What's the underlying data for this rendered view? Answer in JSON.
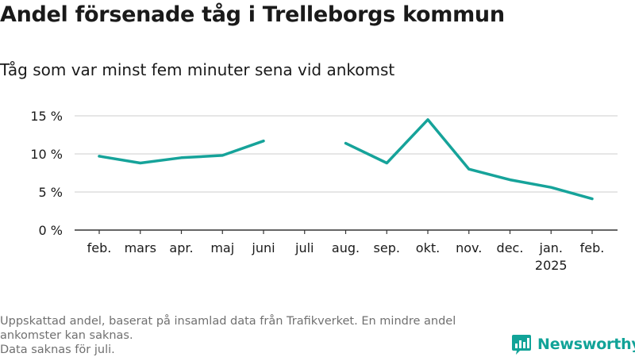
{
  "title": "Andel försenade tåg i Trelleborgs kommun",
  "subtitle": "Tåg som var minst fem minuter sena vid ankomst",
  "footer": {
    "line1": "Uppskattad andel, baserat på insamlad data från Trafikverket. En mindre andel ankomster kan saknas.",
    "line2": "Data saknas för juli."
  },
  "brand": {
    "name": "Newsworthy",
    "icon": "newsworthy-logo-icon"
  },
  "colors": {
    "line": "#16a39a",
    "grid": "#d6d6d6",
    "axis": "#333333",
    "text": "#1a1a1a",
    "footer": "#707070",
    "brand": "#11a398"
  },
  "chart_data": {
    "type": "line",
    "categories": [
      "feb.",
      "mars",
      "apr.",
      "maj",
      "juni",
      "juli",
      "aug.",
      "sep.",
      "okt.",
      "nov.",
      "dec.",
      "jan.",
      "feb."
    ],
    "year_labels": [
      "",
      "",
      "",
      "",
      "",
      "",
      "",
      "",
      "",
      "",
      "",
      "2025",
      ""
    ],
    "series": [
      {
        "values": [
          9.7,
          8.8,
          9.5,
          9.8,
          11.7,
          null,
          11.4,
          8.8,
          14.5,
          8.0,
          6.6,
          5.6,
          4.1
        ]
      }
    ],
    "yticks": [
      0,
      5,
      10,
      15
    ],
    "ytick_labels": [
      "0 %",
      "5 %",
      "10 %",
      "15 %"
    ],
    "ylim": [
      0,
      15
    ],
    "grid": true,
    "xlabel": "",
    "ylabel": ""
  }
}
